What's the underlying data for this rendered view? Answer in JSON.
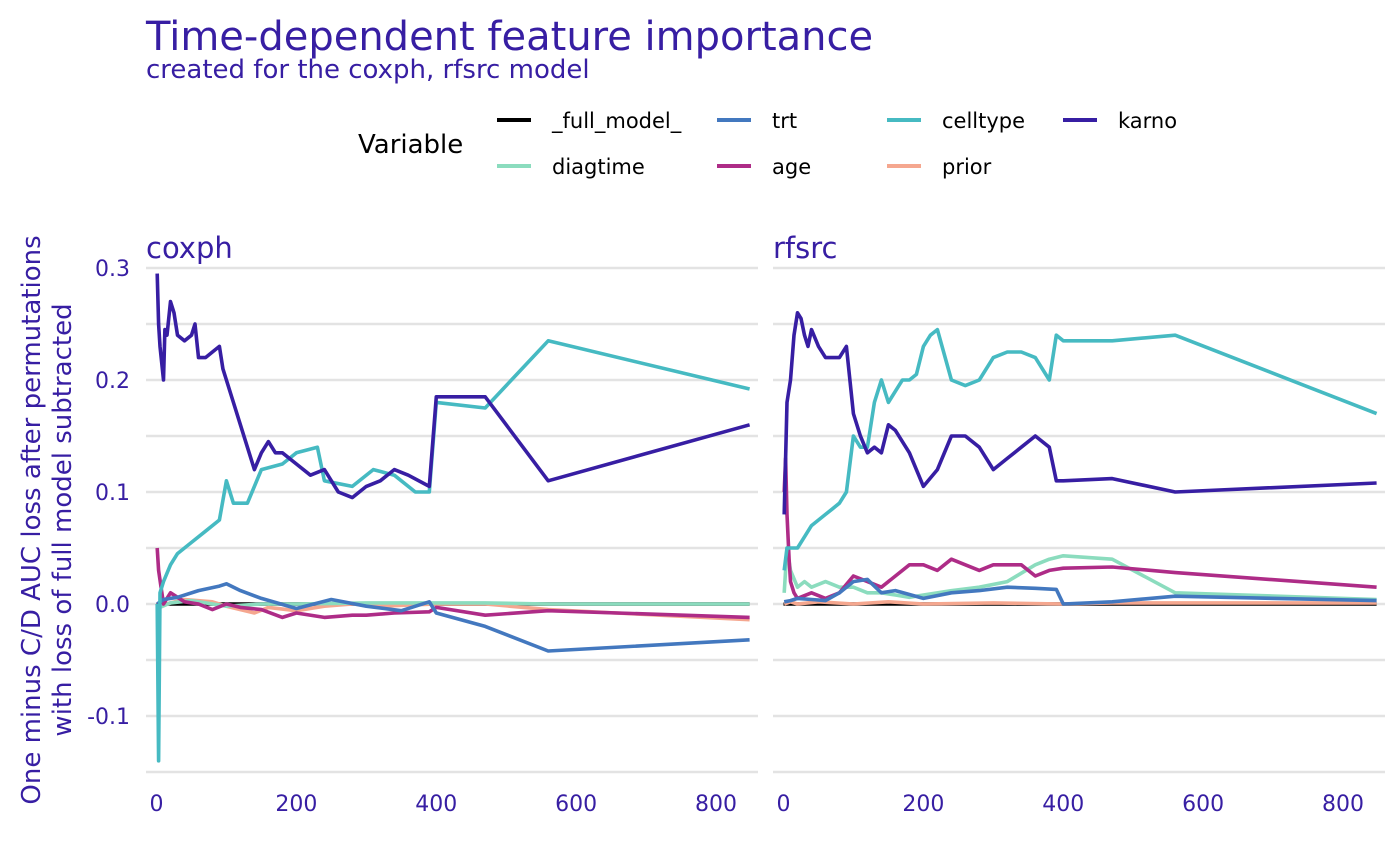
{
  "chart_data": {
    "type": "line",
    "title": "Time-dependent feature importance",
    "subtitle": "created for the coxph, rfsrc model",
    "ylabel_lines": [
      "One minus C/D AUC loss after permutations",
      "with loss of full model subtracted"
    ],
    "xlabel": "",
    "legend": {
      "title": "Variable",
      "position": "top"
    },
    "xlim": [
      -15,
      860
    ],
    "ylim": [
      -0.15,
      0.3
    ],
    "x_ticks": [
      0,
      200,
      400,
      600,
      800
    ],
    "y_ticks": [
      -0.1,
      0.0,
      0.1,
      0.2,
      0.3
    ],
    "y_tick_labels": [
      "-0.1",
      "0.0",
      "0.1",
      "0.2",
      "0.3"
    ],
    "grid": true,
    "series_styles": [
      {
        "name": "_full_model_",
        "color": "#000000"
      },
      {
        "name": "trt",
        "color": "#4378bf"
      },
      {
        "name": "celltype",
        "color": "#46bac2"
      },
      {
        "name": "karno",
        "color": "#371ea3"
      },
      {
        "name": "diagtime",
        "color": "#8bdcbe"
      },
      {
        "name": "age",
        "color": "#ae2c87"
      },
      {
        "name": "prior",
        "color": "#f5a78f"
      }
    ],
    "panels": [
      {
        "label": "coxph",
        "series": [
          {
            "name": "_full_model_",
            "x": [
              0,
              848
            ],
            "y": [
              0,
              0
            ]
          },
          {
            "name": "trt",
            "x": [
              1,
              10,
              30,
              60,
              90,
              100,
              120,
              150,
              200,
              250,
              300,
              350,
              390,
              400,
              470,
              560,
              848
            ],
            "y": [
              0.0,
              0.004,
              0.006,
              0.012,
              0.016,
              0.018,
              0.012,
              0.005,
              -0.004,
              0.004,
              -0.002,
              -0.006,
              0.002,
              -0.008,
              -0.02,
              -0.042,
              -0.032
            ]
          },
          {
            "name": "celltype",
            "x": [
              1,
              3,
              5,
              10,
              20,
              30,
              50,
              70,
              90,
              100,
              110,
              130,
              150,
              180,
              200,
              230,
              240,
              280,
              310,
              340,
              370,
              390,
              400,
              470,
              560,
              848
            ],
            "y": [
              0.0,
              -0.14,
              0.01,
              0.02,
              0.035,
              0.045,
              0.055,
              0.065,
              0.075,
              0.11,
              0.09,
              0.09,
              0.12,
              0.125,
              0.135,
              0.14,
              0.11,
              0.105,
              0.12,
              0.115,
              0.1,
              0.1,
              0.18,
              0.175,
              0.235,
              0.192
            ]
          },
          {
            "name": "karno",
            "x": [
              1,
              3,
              5,
              10,
              12,
              15,
              20,
              25,
              30,
              40,
              50,
              55,
              60,
              70,
              80,
              90,
              95,
              100,
              110,
              120,
              130,
              140,
              150,
              160,
              170,
              180,
              200,
              220,
              240,
              260,
              280,
              300,
              320,
              340,
              360,
              390,
              400,
              470,
              560,
              848
            ],
            "y": [
              0.295,
              0.25,
              0.23,
              0.2,
              0.245,
              0.24,
              0.27,
              0.26,
              0.24,
              0.235,
              0.24,
              0.25,
              0.22,
              0.22,
              0.225,
              0.23,
              0.21,
              0.2,
              0.18,
              0.16,
              0.14,
              0.12,
              0.135,
              0.145,
              0.135,
              0.135,
              0.125,
              0.115,
              0.12,
              0.1,
              0.095,
              0.105,
              0.11,
              0.12,
              0.115,
              0.105,
              0.185,
              0.185,
              0.11,
              0.16
            ]
          },
          {
            "name": "diagtime",
            "x": [
              1,
              5,
              20,
              50,
              100,
              150,
              200,
              300,
              400,
              470,
              560,
              848
            ],
            "y": [
              0.0,
              -0.003,
              0.001,
              0.003,
              -0.002,
              0.0,
              0.0,
              0.001,
              0.001,
              0.001,
              0.0,
              0.0
            ]
          },
          {
            "name": "age",
            "x": [
              1,
              3,
              10,
              20,
              40,
              60,
              80,
              100,
              120,
              150,
              180,
              200,
              240,
              280,
              300,
              340,
              390,
              400,
              470,
              560,
              848
            ],
            "y": [
              0.05,
              0.03,
              0.0,
              0.01,
              0.002,
              0.0,
              -0.005,
              0.0,
              -0.003,
              -0.005,
              -0.012,
              -0.008,
              -0.012,
              -0.01,
              -0.01,
              -0.008,
              -0.007,
              -0.003,
              -0.01,
              -0.006,
              -0.012
            ]
          },
          {
            "name": "prior",
            "x": [
              1,
              5,
              10,
              20,
              40,
              80,
              100,
              140,
              160,
              200,
              240,
              280,
              320,
              360,
              400,
              470,
              560,
              848
            ],
            "y": [
              -0.008,
              -0.003,
              -0.001,
              0.001,
              0.004,
              0.002,
              -0.002,
              -0.008,
              -0.003,
              -0.006,
              -0.002,
              0.0,
              -0.002,
              -0.001,
              0.0,
              0.0,
              -0.005,
              -0.014
            ]
          }
        ]
      },
      {
        "label": "rfsrc",
        "series": [
          {
            "name": "_full_model_",
            "x": [
              0,
              848
            ],
            "y": [
              0,
              0
            ]
          },
          {
            "name": "trt",
            "x": [
              1,
              10,
              20,
              40,
              60,
              80,
              100,
              120,
              140,
              160,
              200,
              240,
              280,
              320,
              360,
              390,
              400,
              470,
              560,
              848
            ],
            "y": [
              0.002,
              0.003,
              0.005,
              0.004,
              0.003,
              0.01,
              0.02,
              0.022,
              0.01,
              0.012,
              0.005,
              0.01,
              0.012,
              0.015,
              0.014,
              0.013,
              0.0,
              0.002,
              0.007,
              0.003
            ]
          },
          {
            "name": "celltype",
            "x": [
              1,
              5,
              10,
              20,
              30,
              40,
              50,
              60,
              70,
              80,
              90,
              100,
              110,
              120,
              130,
              140,
              150,
              160,
              170,
              180,
              190,
              200,
              210,
              220,
              240,
              260,
              280,
              300,
              320,
              340,
              360,
              380,
              390,
              400,
              470,
              560,
              848
            ],
            "y": [
              0.03,
              0.05,
              0.05,
              0.05,
              0.06,
              0.07,
              0.075,
              0.08,
              0.085,
              0.09,
              0.1,
              0.15,
              0.14,
              0.14,
              0.18,
              0.2,
              0.18,
              0.19,
              0.2,
              0.2,
              0.205,
              0.23,
              0.24,
              0.245,
              0.2,
              0.195,
              0.2,
              0.22,
              0.225,
              0.225,
              0.22,
              0.2,
              0.24,
              0.235,
              0.235,
              0.24,
              0.17
            ]
          },
          {
            "name": "karno",
            "x": [
              1,
              5,
              10,
              15,
              20,
              25,
              30,
              35,
              40,
              50,
              60,
              70,
              80,
              90,
              95,
              100,
              110,
              120,
              130,
              140,
              150,
              160,
              180,
              200,
              220,
              240,
              260,
              280,
              300,
              320,
              340,
              360,
              380,
              390,
              400,
              470,
              560,
              848
            ],
            "y": [
              0.08,
              0.18,
              0.2,
              0.24,
              0.26,
              0.255,
              0.24,
              0.23,
              0.245,
              0.23,
              0.22,
              0.22,
              0.22,
              0.23,
              0.2,
              0.17,
              0.15,
              0.135,
              0.14,
              0.135,
              0.16,
              0.155,
              0.135,
              0.105,
              0.12,
              0.15,
              0.15,
              0.14,
              0.12,
              0.13,
              0.14,
              0.15,
              0.14,
              0.11,
              0.11,
              0.112,
              0.1,
              0.108
            ]
          },
          {
            "name": "diagtime",
            "x": [
              1,
              5,
              10,
              20,
              30,
              40,
              60,
              80,
              100,
              120,
              140,
              160,
              180,
              200,
              240,
              280,
              320,
              360,
              380,
              400,
              470,
              560,
              848
            ],
            "y": [
              0.01,
              0.05,
              0.03,
              0.015,
              0.02,
              0.015,
              0.02,
              0.015,
              0.015,
              0.01,
              0.01,
              0.008,
              0.006,
              0.008,
              0.012,
              0.015,
              0.02,
              0.035,
              0.04,
              0.043,
              0.04,
              0.01,
              0.004
            ]
          },
          {
            "name": "age",
            "x": [
              1,
              3,
              5,
              8,
              10,
              15,
              20,
              40,
              60,
              80,
              100,
              120,
              140,
              160,
              180,
              200,
              220,
              240,
              260,
              280,
              300,
              340,
              360,
              380,
              400,
              470,
              560,
              848
            ],
            "y": [
              0.1,
              0.13,
              0.08,
              0.04,
              0.02,
              0.01,
              0.005,
              0.01,
              0.005,
              0.01,
              0.025,
              0.02,
              0.015,
              0.025,
              0.035,
              0.035,
              0.03,
              0.04,
              0.035,
              0.03,
              0.035,
              0.035,
              0.025,
              0.03,
              0.032,
              0.033,
              0.028,
              0.015
            ]
          },
          {
            "name": "prior",
            "x": [
              1,
              10,
              20,
              50,
              100,
              150,
              200,
              300,
              400,
              470,
              560,
              848
            ],
            "y": [
              0.0,
              0.002,
              0.0,
              0.002,
              0.0,
              0.002,
              0.0,
              0.001,
              0.0,
              0.001,
              0.001,
              0.001
            ]
          }
        ]
      }
    ]
  }
}
